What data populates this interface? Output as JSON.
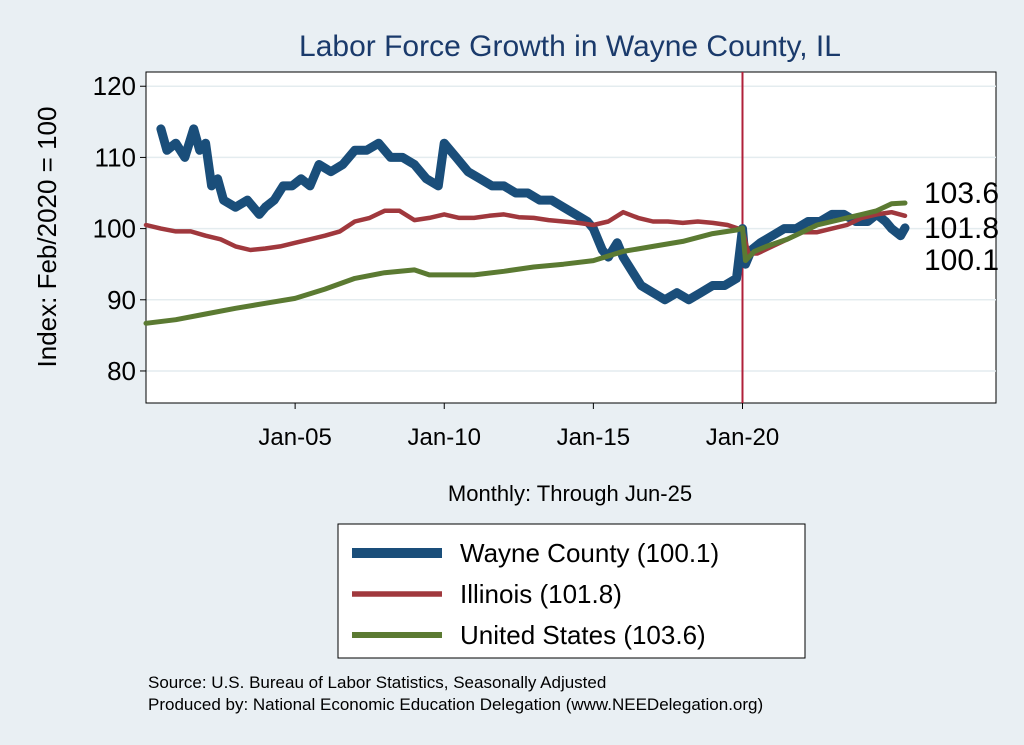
{
  "chart_data": {
    "type": "line",
    "title": "Labor Force Growth in Wayne  County, IL",
    "ylabel": "Index: Feb/2020 = 100",
    "xlabel": "Monthly: Through Jun-25",
    "xlim": [
      2000.0,
      2028.5
    ],
    "ylim": [
      75.5,
      122
    ],
    "yticks": [
      80,
      90,
      100,
      110,
      120
    ],
    "xticks": [
      {
        "value": 2005.0,
        "label": "Jan-05"
      },
      {
        "value": 2010.0,
        "label": "Jan-10"
      },
      {
        "value": 2015.0,
        "label": "Jan-15"
      },
      {
        "value": 2020.0,
        "label": "Jan-20"
      }
    ],
    "grid": true,
    "vline": {
      "value": 2020.0,
      "color": "#b0203a"
    },
    "end_labels": [
      "103.6",
      "101.8",
      "100.1"
    ],
    "legend": {
      "position": "bottom",
      "entries": [
        {
          "label": "Wayne  County (100.1)",
          "series": 0
        },
        {
          "label": "Illinois (101.8)",
          "series": 1
        },
        {
          "label": "United States (103.6)",
          "series": 2
        }
      ]
    },
    "series": [
      {
        "name": "Wayne  County",
        "color": "#1a4e7a",
        "end_value": 100.1,
        "x": [
          2000.5,
          2000.7,
          2001.0,
          2001.3,
          2001.6,
          2001.8,
          2002.0,
          2002.2,
          2002.4,
          2002.6,
          2003.0,
          2003.4,
          2003.8,
          2004.0,
          2004.3,
          2004.6,
          2004.9,
          2005.2,
          2005.5,
          2005.8,
          2006.2,
          2006.6,
          2007.0,
          2007.4,
          2007.8,
          2008.2,
          2008.6,
          2009.0,
          2009.4,
          2009.8,
          2010.0,
          2010.4,
          2010.8,
          2011.2,
          2011.6,
          2012.0,
          2012.4,
          2012.8,
          2013.2,
          2013.6,
          2014.0,
          2014.4,
          2014.8,
          2015.0,
          2015.3,
          2015.5,
          2015.8,
          2016.0,
          2016.3,
          2016.6,
          2017.0,
          2017.4,
          2017.8,
          2018.2,
          2018.6,
          2019.0,
          2019.4,
          2019.8,
          2020.0,
          2020.1,
          2020.3,
          2020.6,
          2021.0,
          2021.4,
          2021.8,
          2022.2,
          2022.6,
          2023.0,
          2023.4,
          2023.8,
          2024.2,
          2024.5,
          2024.8,
          2025.0,
          2025.3,
          2025.45
        ],
        "y": [
          114,
          111,
          112,
          110,
          114,
          111,
          112,
          106,
          107,
          104,
          103,
          104,
          102,
          103,
          104,
          106,
          106,
          107,
          106,
          109,
          108,
          109,
          111,
          111,
          112,
          110,
          110,
          109,
          107,
          106,
          112,
          110,
          108,
          107,
          106,
          106,
          105,
          105,
          104,
          104,
          103,
          102,
          101,
          100,
          97,
          96,
          98,
          96,
          94,
          92,
          91,
          90,
          91,
          90,
          91,
          92,
          92,
          93,
          100,
          95,
          97,
          98,
          99,
          100,
          100,
          101,
          101,
          102,
          102,
          101,
          101,
          102,
          101,
          100,
          99,
          100.1
        ]
      },
      {
        "name": "Illinois",
        "color": "#a0383d",
        "end_value": 101.8,
        "x": [
          2000.0,
          2000.5,
          2001.0,
          2001.5,
          2002.0,
          2002.5,
          2003.0,
          2003.5,
          2004.0,
          2004.5,
          2005.0,
          2005.5,
          2006.0,
          2006.5,
          2007.0,
          2007.5,
          2008.0,
          2008.5,
          2009.0,
          2009.5,
          2010.0,
          2010.5,
          2011.0,
          2011.5,
          2012.0,
          2012.5,
          2013.0,
          2013.5,
          2014.0,
          2014.5,
          2015.0,
          2015.5,
          2016.0,
          2016.5,
          2017.0,
          2017.5,
          2018.0,
          2018.5,
          2019.0,
          2019.5,
          2020.0,
          2020.2,
          2020.5,
          2021.0,
          2021.5,
          2022.0,
          2022.5,
          2023.0,
          2023.5,
          2024.0,
          2024.5,
          2025.0,
          2025.45
        ],
        "y": [
          100.5,
          100,
          99.6,
          99.6,
          99,
          98.5,
          97.5,
          97,
          97.2,
          97.5,
          98,
          98.5,
          99,
          99.6,
          101,
          101.5,
          102.5,
          102.5,
          101.2,
          101.5,
          102,
          101.5,
          101.5,
          101.8,
          102,
          101.6,
          101.5,
          101.2,
          101,
          100.8,
          100.5,
          101,
          102.3,
          101.5,
          101,
          101,
          100.8,
          101,
          100.8,
          100.5,
          99.8,
          96.5,
          96.5,
          97.5,
          98.5,
          99.5,
          99.5,
          100,
          100.5,
          101.5,
          102,
          102.3,
          101.8
        ]
      },
      {
        "name": "United States",
        "color": "#5b7a32",
        "end_value": 103.6,
        "x": [
          2000.0,
          2001.0,
          2002.0,
          2003.0,
          2004.0,
          2005.0,
          2006.0,
          2007.0,
          2008.0,
          2009.0,
          2009.5,
          2010.0,
          2011.0,
          2012.0,
          2013.0,
          2014.0,
          2015.0,
          2016.0,
          2017.0,
          2018.0,
          2019.0,
          2019.8,
          2020.0,
          2020.1,
          2020.4,
          2020.8,
          2021.5,
          2022.0,
          2022.5,
          2023.0,
          2023.5,
          2024.0,
          2024.5,
          2025.0,
          2025.45
        ],
        "y": [
          86.7,
          87.2,
          88,
          88.8,
          89.5,
          90.2,
          91.5,
          93,
          93.8,
          94.2,
          93.5,
          93.5,
          93.5,
          94,
          94.6,
          95,
          95.5,
          96.8,
          97.5,
          98.2,
          99.3,
          99.8,
          100.1,
          95.5,
          96.8,
          97.5,
          98.5,
          99.5,
          100.5,
          101,
          101.5,
          102,
          102.5,
          103.5,
          103.6
        ]
      }
    ]
  },
  "footer": {
    "source": "Source: U.S. Bureau of Labor Statistics, Seasonally Adjusted",
    "produced": "Produced by: National Economic Education Delegation (www.NEEDelegation.org)"
  }
}
